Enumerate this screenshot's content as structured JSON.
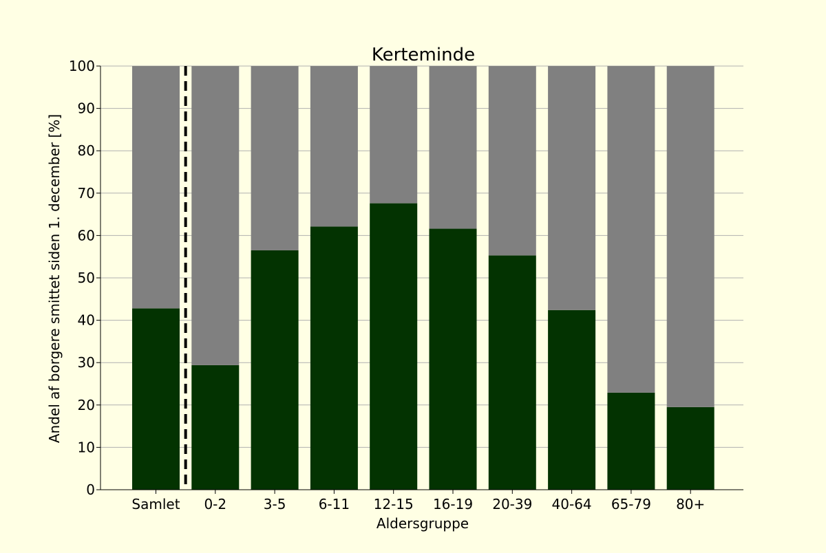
{
  "chart_data": {
    "type": "bar",
    "stacked": true,
    "title": "Kerteminde",
    "xlabel": "Aldersgruppe",
    "ylabel": "Andel af borgere smittet siden 1. december [%]",
    "categories": [
      "Samlet",
      "0-2",
      "3-5",
      "6-11",
      "12-15",
      "16-19",
      "20-39",
      "40-64",
      "65-79",
      "80+"
    ],
    "series": [
      {
        "values": [
          42.8,
          29.4,
          56.5,
          62.1,
          67.6,
          61.6,
          55.3,
          42.4,
          22.9,
          19.5
        ],
        "color": "#033301"
      },
      {
        "values": [
          57.2,
          70.6,
          43.5,
          37.9,
          32.4,
          38.4,
          44.7,
          57.6,
          77.1,
          80.5
        ],
        "color": "#808080"
      }
    ],
    "ylim": [
      0,
      100
    ],
    "yticks": [
      0,
      10,
      20,
      30,
      40,
      50,
      60,
      70,
      80,
      90,
      100
    ],
    "grid": "horizontal",
    "separator_after_category": "Samlet",
    "background": "#ffffe4"
  }
}
